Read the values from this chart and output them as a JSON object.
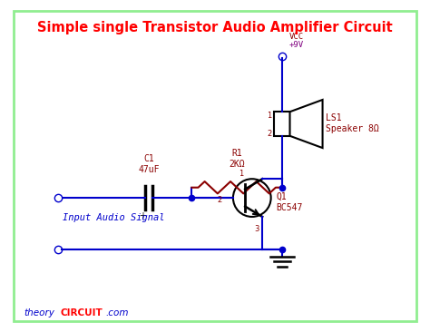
{
  "title": "Simple single Transistor Audio Amplifier Circuit",
  "title_color": "#ff0000",
  "title_fontsize": 11,
  "bg_color": "#ffffff",
  "border_color": "#90ee90",
  "wire_blue": "#0000cc",
  "comp_color": "#8b0000",
  "text_blue": "#0000cc",
  "input_label": "Input Audio Signal",
  "vcc_label": "VCC\n+9V",
  "r1_label": "R1\n2KΩ",
  "c1_label": "C1\n47uF",
  "q1_label": "Q1\nBC547",
  "ls1_label": "LS1\nSpeaker 8Ω"
}
